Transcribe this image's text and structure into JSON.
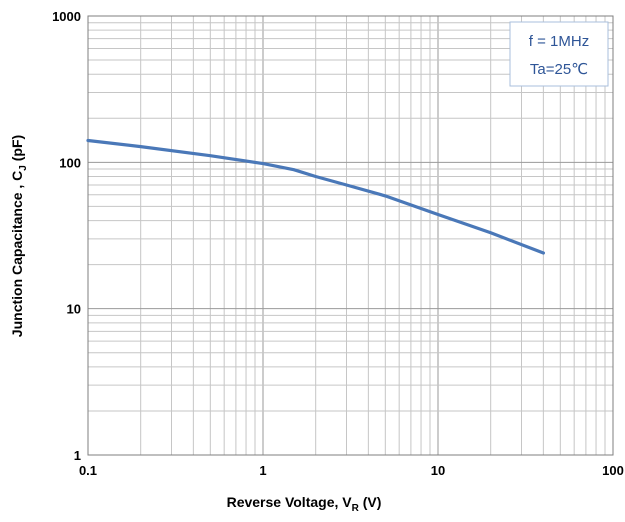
{
  "chart_data": {
    "type": "line",
    "x_scale": "log",
    "y_scale": "log",
    "xlim": [
      0.1,
      100
    ],
    "ylim": [
      1,
      1000
    ],
    "grid": true,
    "xlabel": {
      "main": "Reverse Voltage, V",
      "sub": "R",
      "unit": " (V)"
    },
    "ylabel": {
      "main": "Junction Capacitance , C",
      "sub": "J",
      "unit": " (pF)"
    },
    "x_ticks": [
      {
        "value": 0.1,
        "label": "0.1"
      },
      {
        "value": 1,
        "label": "1"
      },
      {
        "value": 10,
        "label": "10"
      },
      {
        "value": 100,
        "label": "100"
      }
    ],
    "y_ticks": [
      {
        "value": 1,
        "label": "1"
      },
      {
        "value": 10,
        "label": "10"
      },
      {
        "value": 100,
        "label": "100"
      },
      {
        "value": 1000,
        "label": "1000"
      }
    ],
    "annotations": [
      "f = 1MHz",
      "Ta=25℃"
    ],
    "series": [
      {
        "color": "#4a78b8",
        "x": [
          0.1,
          0.2,
          0.5,
          1.0,
          1.5,
          2.0,
          3.0,
          5.0,
          10.0,
          20.0,
          40.0
        ],
        "y": [
          141,
          128,
          111,
          98,
          89,
          80,
          70,
          59,
          44,
          33,
          24
        ]
      }
    ],
    "colors": {
      "line": "#4a78b8",
      "grid": "#c6c6c6",
      "major_grid": "#9a9a9a",
      "annotation_border": "#a9bfdc",
      "annotation_text": "#2e5597"
    }
  }
}
